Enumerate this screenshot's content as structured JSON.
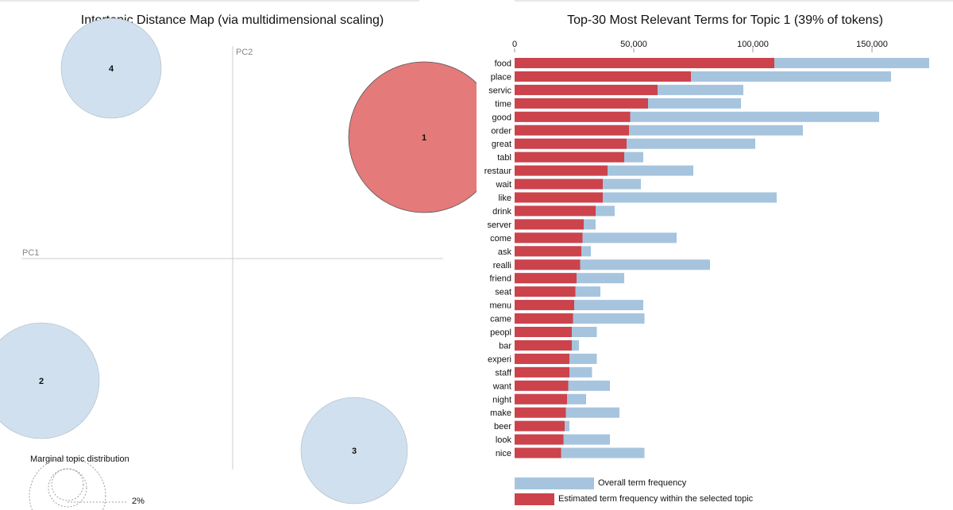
{
  "left_title": "Intertopic Distance Map (via multidimensional scaling)",
  "right_title": "Top-30 Most Relevant Terms for Topic 1 (39% of tokens)",
  "colors": {
    "overall": "#a6c4de",
    "selected": "#cc434c",
    "topic_selected": "#e47a7a",
    "topic_other": "#d0e0ee"
  },
  "chart_data": [
    {
      "type": "scatter",
      "title": "Intertopic Distance Map (via multidimensional scaling)",
      "xlabel": "PC1",
      "ylabel": "PC2",
      "topics": [
        {
          "label": "1",
          "selected": true
        },
        {
          "label": "2",
          "selected": false
        },
        {
          "label": "3",
          "selected": false
        },
        {
          "label": "4",
          "selected": false
        }
      ],
      "marginal": {
        "title": "Marginal topic distribution",
        "label": "2%"
      }
    },
    {
      "type": "bar",
      "title": "Top-30 Most Relevant Terms for Topic 1 (39% of tokens)",
      "x_ticks": [
        "0",
        "50,000",
        "100,000",
        "150,000"
      ],
      "x_tick_values": [
        0,
        50000,
        100000,
        150000
      ],
      "xlim": [
        0,
        175000
      ],
      "categories": [
        "food",
        "place",
        "servic",
        "time",
        "good",
        "order",
        "great",
        "tabl",
        "restaur",
        "wait",
        "like",
        "drink",
        "server",
        "come",
        "ask",
        "realli",
        "friend",
        "seat",
        "menu",
        "came",
        "peopl",
        "bar",
        "experi",
        "staff",
        "want",
        "night",
        "make",
        "beer",
        "look",
        "nice"
      ],
      "series": [
        {
          "name": "Overall term frequency",
          "values": [
            174000,
            158000,
            96000,
            95000,
            153000,
            121000,
            101000,
            54000,
            75000,
            53000,
            110000,
            42000,
            34000,
            68000,
            32000,
            82000,
            46000,
            36000,
            54000,
            54500,
            34500,
            27000,
            34500,
            32500,
            40000,
            30000,
            44000,
            23000,
            40000,
            54500
          ]
        },
        {
          "name": "Estimated term frequency within the selected topic",
          "values": [
            109000,
            74000,
            60000,
            56000,
            48500,
            48000,
            47000,
            46000,
            39000,
            37000,
            37000,
            34000,
            29000,
            28500,
            28000,
            27500,
            26000,
            25500,
            25000,
            24500,
            24000,
            24000,
            23000,
            23000,
            22500,
            22000,
            21500,
            21000,
            20500,
            19500
          ]
        }
      ]
    }
  ]
}
